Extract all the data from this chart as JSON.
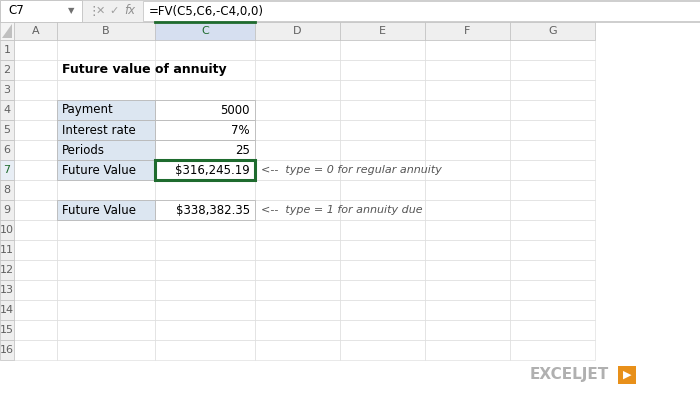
{
  "title": "Future value of annuity",
  "formula_bar_cell": "C7",
  "formula_bar_formula": "=FV(C5,C6,-C4,0,0)",
  "col_headers": [
    "A",
    "B",
    "C",
    "D",
    "E",
    "F",
    "G"
  ],
  "row_headers": [
    "1",
    "2",
    "3",
    "4",
    "5",
    "6",
    "7",
    "8",
    "9",
    "10",
    "11",
    "12",
    "13",
    "14",
    "15",
    "16"
  ],
  "table1_rows": [
    {
      "label": "Payment",
      "value": "5000"
    },
    {
      "label": "Interest rate",
      "value": "7%"
    },
    {
      "label": "Periods",
      "value": "25"
    },
    {
      "label": "Future Value",
      "value": "$316,245.19"
    }
  ],
  "table2_rows": [
    {
      "label": "Future Value",
      "value": "$338,382.35"
    }
  ],
  "annotation1": "<--  type = 0 for regular annuity",
  "annotation2": "<--  type = 1 for annuity due",
  "bg_color": "#ffffff",
  "header_bg": "#efefef",
  "col_header_selected_bg": "#d6dff0",
  "col_header_selected_top": "#1e6b2e",
  "label_cell_bg": "#dce6f1",
  "value_cell_bg": "#ffffff",
  "selected_cell_border": "#1e6b2e",
  "grid_color": "#d0d0d0",
  "row_header_selected_bg": "#e8e8e8",
  "exceljet_gray": "#b0b0b0",
  "exceljet_orange": "#e8901a",
  "annotation_color": "#555555",
  "title_color": "#000000",
  "label_text_color": "#000000",
  "value_text_color": "#000000",
  "formula_bar_bg": "#f0f0f0",
  "formula_bar_border": "#c8c8c8"
}
